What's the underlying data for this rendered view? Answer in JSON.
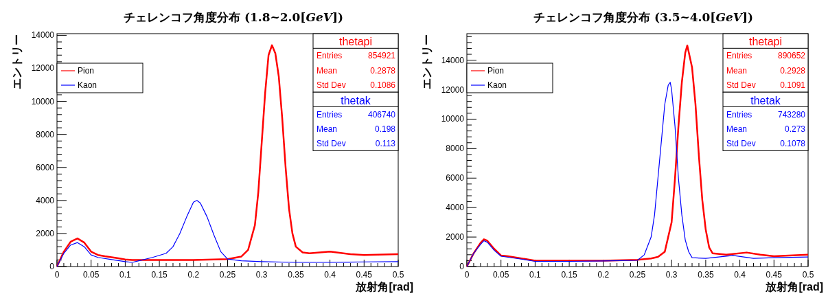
{
  "chart_data": [
    {
      "type": "line",
      "title": "チェレンコフ角度分布 (1.8~2.0[*GeV*])",
      "xlabel": "放射角[rad]",
      "ylabel": "エントリー",
      "xlim": [
        0,
        0.5
      ],
      "xticks": [
        0,
        0.05,
        0.1,
        0.15,
        0.2,
        0.25,
        0.3,
        0.35,
        0.4,
        0.45,
        0.5
      ],
      "ylim": [
        0,
        14100
      ],
      "yticks": [
        0,
        2000,
        4000,
        6000,
        8000,
        10000,
        12000,
        14000
      ],
      "legend": "top left",
      "grid": false,
      "annotations": [
        "thetapi",
        "Entries",
        "854921",
        "Mean",
        "0.2878",
        "Std Dev",
        "0.1086",
        "thetak",
        "Entries",
        "406740",
        "Mean",
        "0.198",
        "Std Dev",
        "0.113"
      ],
      "series": [
        {
          "name": "Pion",
          "color": "#ff0000",
          "x": [
            0,
            0.01,
            0.02,
            0.03,
            0.04,
            0.05,
            0.06,
            0.07,
            0.08,
            0.09,
            0.1,
            0.11,
            0.12,
            0.15,
            0.2,
            0.25,
            0.27,
            0.28,
            0.29,
            0.295,
            0.3,
            0.305,
            0.31,
            0.315,
            0.32,
            0.325,
            0.33,
            0.335,
            0.34,
            0.345,
            0.35,
            0.36,
            0.37,
            0.4,
            0.43,
            0.45,
            0.5
          ],
          "values": [
            0,
            900,
            1500,
            1700,
            1450,
            900,
            700,
            620,
            560,
            500,
            430,
            400,
            400,
            400,
            400,
            450,
            600,
            1000,
            2500,
            4500,
            7500,
            10500,
            12800,
            13400,
            12900,
            11500,
            9000,
            6000,
            3500,
            2000,
            1200,
            850,
            800,
            900,
            750,
            700,
            750
          ]
        },
        {
          "name": "Kaon",
          "color": "#0000ff",
          "x": [
            0,
            0.01,
            0.02,
            0.03,
            0.04,
            0.05,
            0.06,
            0.08,
            0.1,
            0.11,
            0.12,
            0.14,
            0.16,
            0.17,
            0.18,
            0.19,
            0.2,
            0.205,
            0.21,
            0.22,
            0.23,
            0.24,
            0.25,
            0.27,
            0.3,
            0.35,
            0.4,
            0.45,
            0.5
          ],
          "values": [
            0,
            800,
            1300,
            1450,
            1200,
            700,
            550,
            420,
            300,
            250,
            350,
            550,
            800,
            1200,
            2000,
            3000,
            3900,
            4000,
            3850,
            3000,
            1900,
            900,
            450,
            350,
            300,
            250,
            250,
            280,
            300
          ]
        }
      ]
    },
    {
      "type": "line",
      "title": "チェレンコフ角度分布 (3.5~4.0[*GeV*])",
      "xlabel": "放射角[rad]",
      "ylabel": "エントリー",
      "xlim": [
        0,
        0.5
      ],
      "xticks": [
        0,
        0.05,
        0.1,
        0.15,
        0.2,
        0.25,
        0.3,
        0.35,
        0.4,
        0.45,
        0.5
      ],
      "ylim": [
        0,
        15800
      ],
      "yticks": [
        0,
        2000,
        4000,
        6000,
        8000,
        10000,
        12000,
        14000
      ],
      "legend": "top left",
      "grid": false,
      "annotations": [
        "thetapi",
        "Entries",
        "890652",
        "Mean",
        "0.2928",
        "Std Dev",
        "0.1091",
        "thetak",
        "Entries",
        "743280",
        "Mean",
        "0.273",
        "Std Dev",
        "0.1078"
      ],
      "series": [
        {
          "name": "Pion",
          "color": "#ff0000",
          "x": [
            0,
            0.01,
            0.02,
            0.025,
            0.03,
            0.04,
            0.05,
            0.06,
            0.08,
            0.1,
            0.15,
            0.2,
            0.25,
            0.27,
            0.28,
            0.29,
            0.3,
            0.305,
            0.31,
            0.315,
            0.32,
            0.323,
            0.33,
            0.335,
            0.34,
            0.345,
            0.35,
            0.355,
            0.36,
            0.38,
            0.41,
            0.43,
            0.45,
            0.5
          ],
          "values": [
            0,
            900,
            1600,
            1850,
            1750,
            1200,
            750,
            700,
            550,
            400,
            400,
            400,
            450,
            550,
            650,
            1000,
            3000,
            6000,
            9500,
            12500,
            14500,
            15000,
            13500,
            11000,
            7500,
            4500,
            2500,
            1300,
            900,
            800,
            950,
            800,
            700,
            800
          ]
        },
        {
          "name": "Kaon",
          "color": "#0000ff",
          "x": [
            0,
            0.01,
            0.02,
            0.025,
            0.03,
            0.04,
            0.05,
            0.08,
            0.1,
            0.15,
            0.2,
            0.25,
            0.26,
            0.27,
            0.275,
            0.28,
            0.285,
            0.29,
            0.295,
            0.298,
            0.3,
            0.305,
            0.31,
            0.315,
            0.32,
            0.325,
            0.33,
            0.35,
            0.39,
            0.42,
            0.45,
            0.5
          ],
          "values": [
            0,
            900,
            1500,
            1750,
            1650,
            1100,
            700,
            500,
            350,
            350,
            380,
            420,
            800,
            2000,
            3500,
            6000,
            8500,
            11000,
            12300,
            12500,
            12000,
            9500,
            6000,
            3500,
            1800,
            1000,
            600,
            550,
            750,
            550,
            600,
            650
          ]
        }
      ]
    }
  ]
}
